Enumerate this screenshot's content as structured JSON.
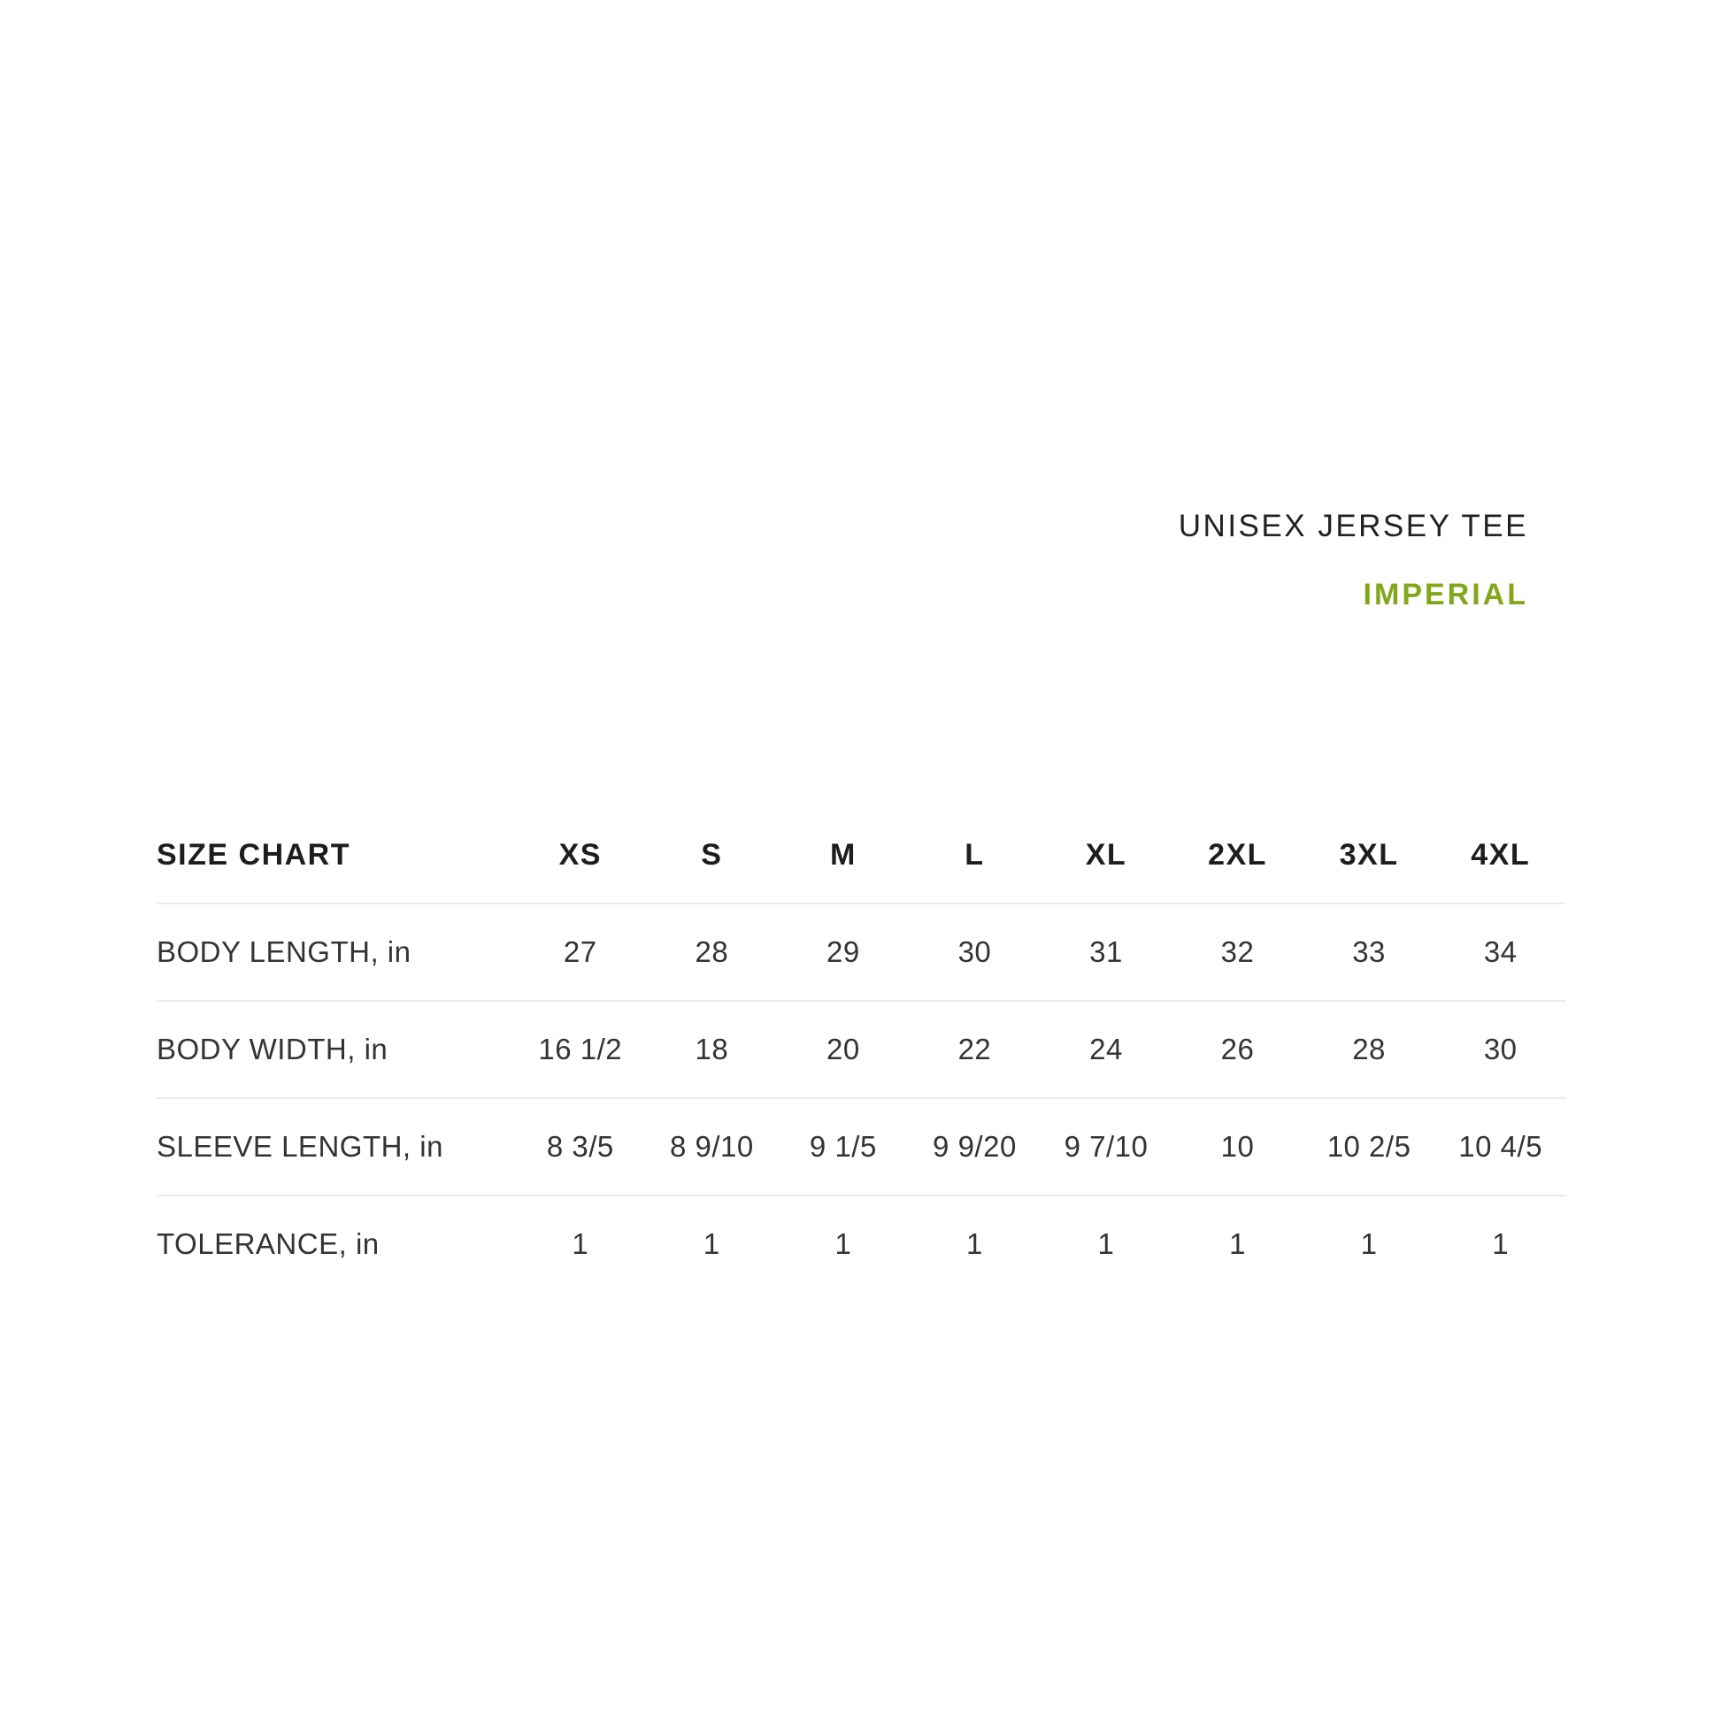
{
  "header": {
    "product_title": "UNISEX JERSEY TEE",
    "unit_label": "IMPERIAL"
  },
  "chart_data": {
    "type": "table",
    "title": "SIZE CHART",
    "columns": [
      "XS",
      "S",
      "M",
      "L",
      "XL",
      "2XL",
      "3XL",
      "4XL"
    ],
    "rows": [
      {
        "label": "BODY LENGTH, in",
        "values": [
          "27",
          "28",
          "29",
          "30",
          "31",
          "32",
          "33",
          "34"
        ]
      },
      {
        "label": "BODY WIDTH, in",
        "values": [
          "16 1/2",
          "18",
          "20",
          "22",
          "24",
          "26",
          "28",
          "30"
        ]
      },
      {
        "label": "SLEEVE LENGTH, in",
        "values": [
          "8 3/5",
          "8 9/10",
          "9 1/5",
          "9 9/20",
          "9 7/10",
          "10",
          "10 2/5",
          "10 4/5"
        ]
      },
      {
        "label": "TOLERANCE, in",
        "values": [
          "1",
          "1",
          "1",
          "1",
          "1",
          "1",
          "1",
          "1"
        ]
      }
    ]
  },
  "colors": {
    "background": "#ffffff",
    "text_primary": "#1d1d1d",
    "text_secondary": "#333333",
    "divider": "#ececec",
    "accent_green": "#82a71b"
  }
}
